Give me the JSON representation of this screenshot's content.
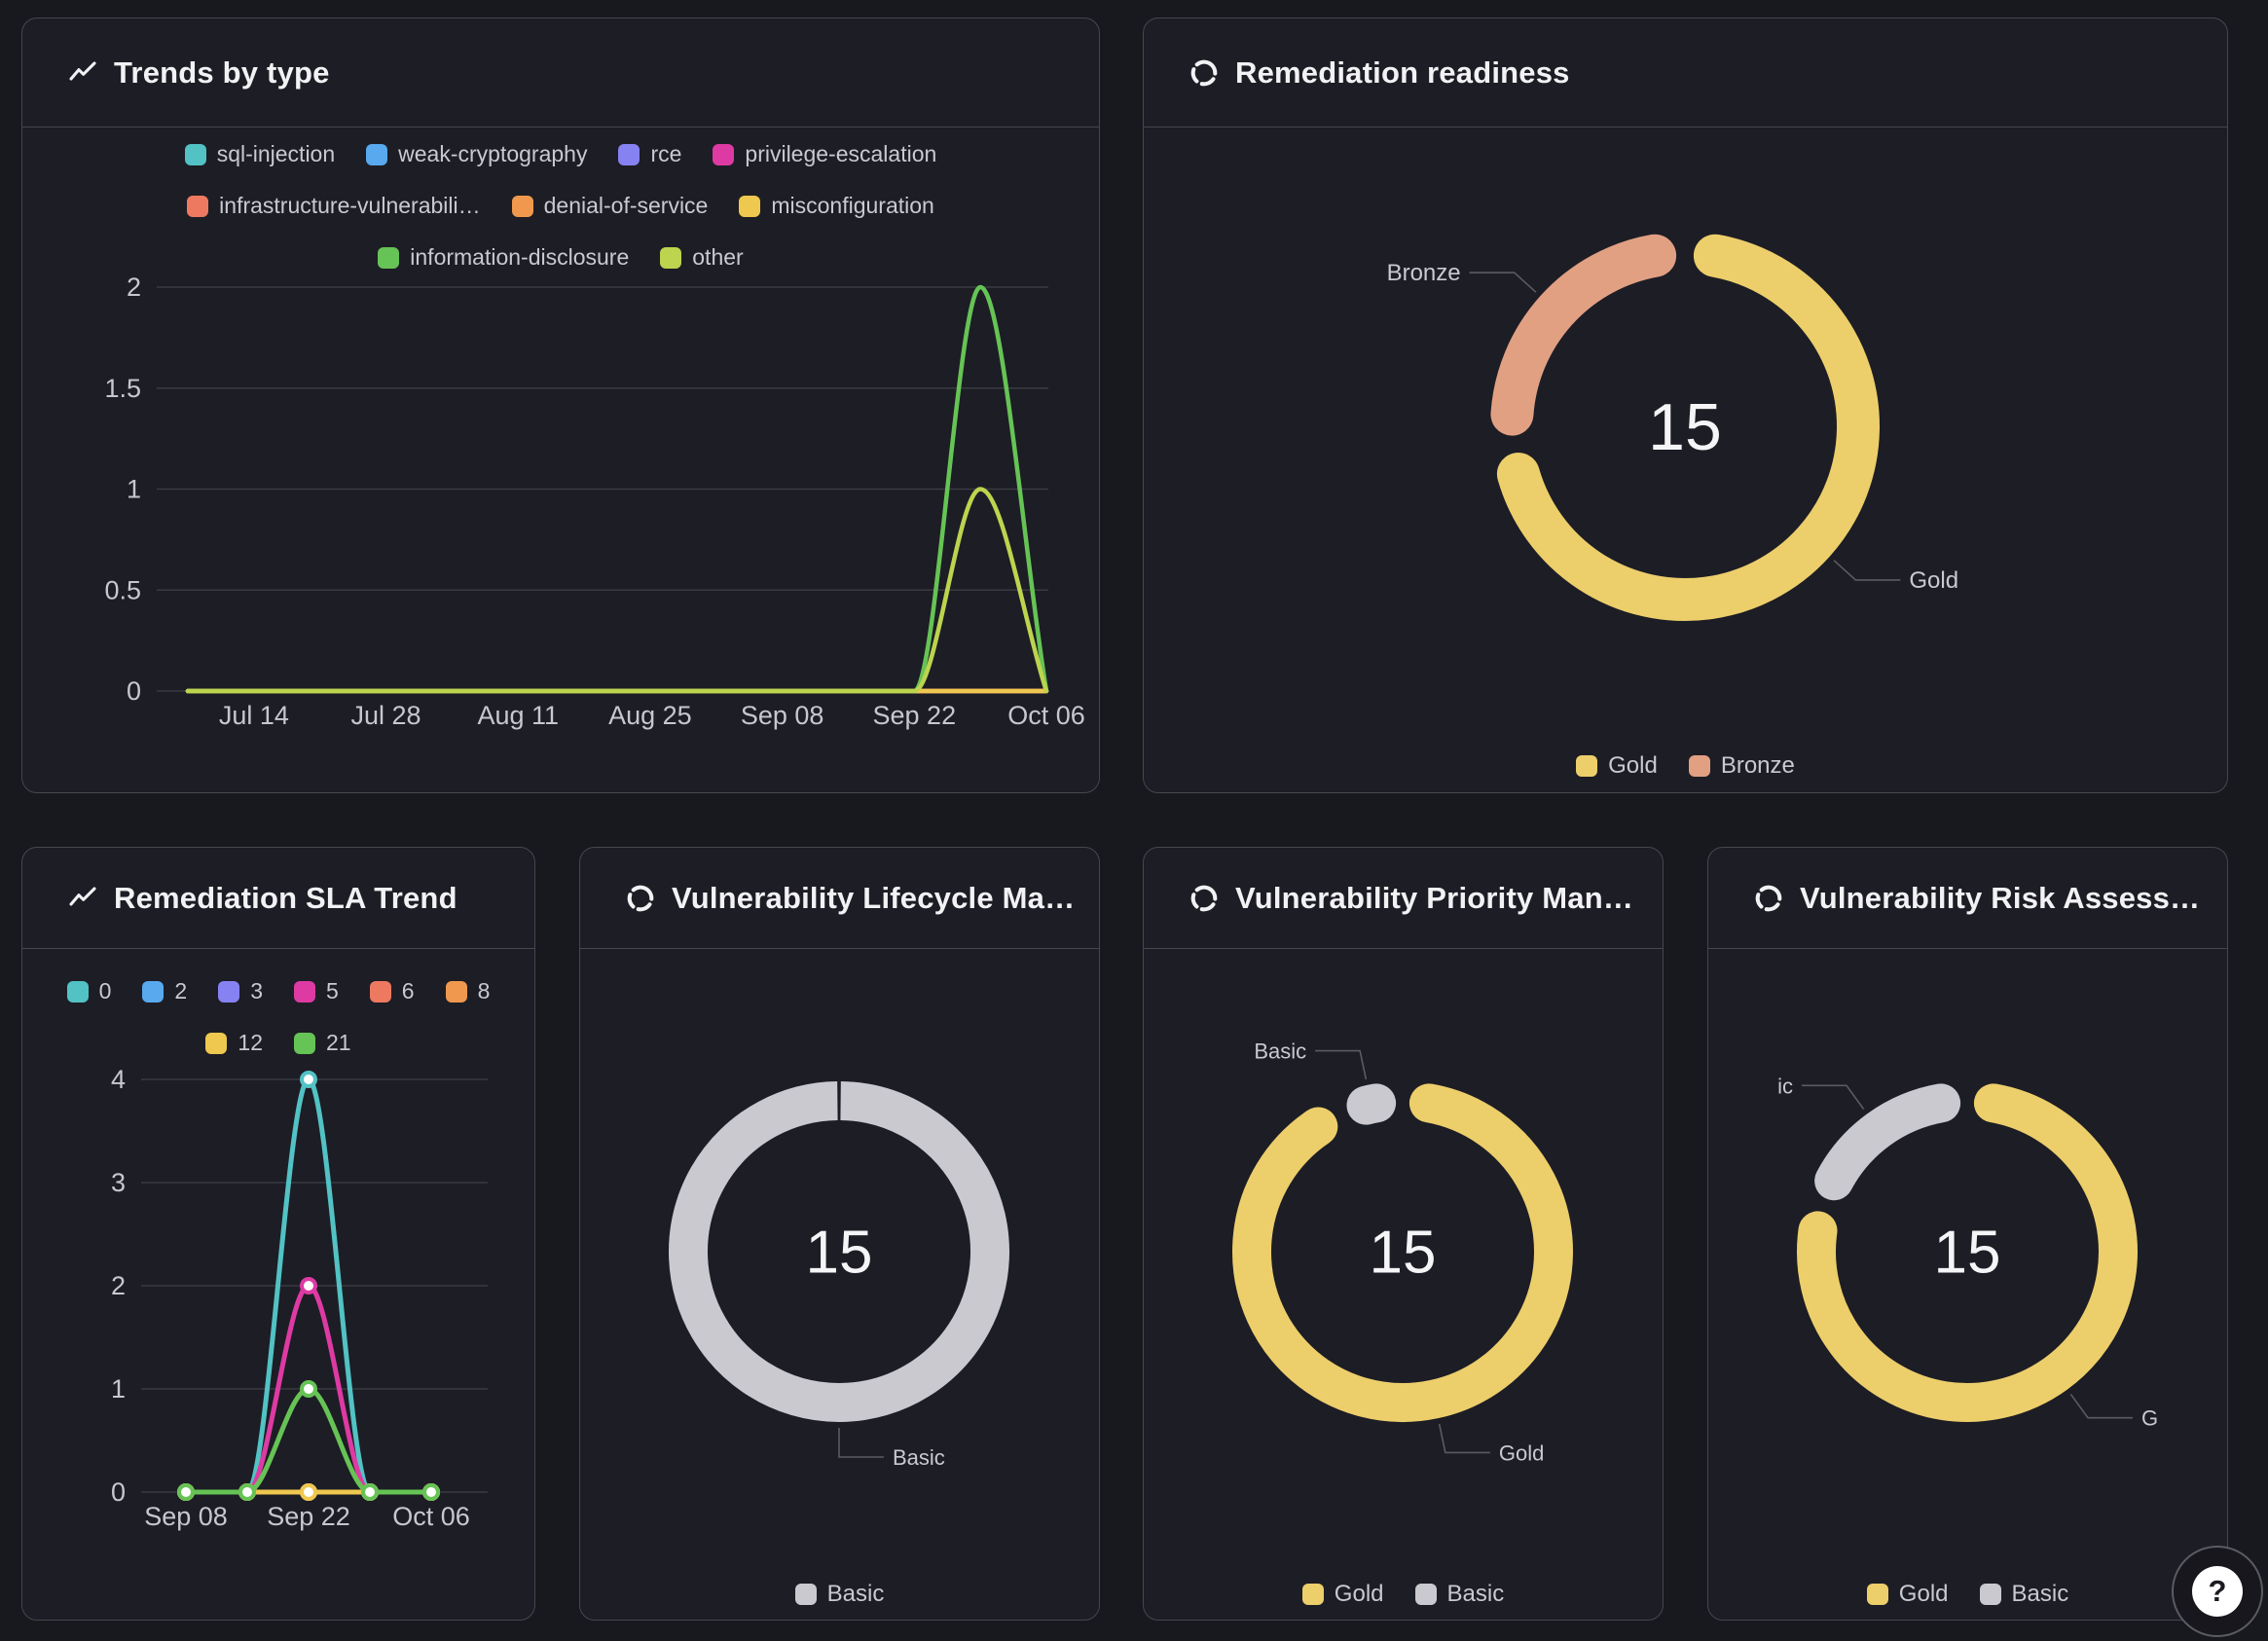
{
  "colors": {
    "gold": "#ecce6b",
    "bronze": "#e2a083",
    "basic_gray": "#c9c9cf",
    "teal": "#52c2c4",
    "blue": "#58a9ee",
    "purple": "#8782f2",
    "magenta": "#de3aa3",
    "salmon": "#ee7961",
    "orange": "#f0994e",
    "yellow": "#eec84f",
    "green": "#66c355",
    "lime": "#bcd44e",
    "panel_bg": "#1d1d25",
    "page_bg": "#18181f",
    "grid_line": "#3a3a41",
    "tick_text": "#c7c7cd"
  },
  "help_button": {
    "icon": "question-mark-icon",
    "label": "?"
  },
  "panels": {
    "trends": {
      "title": "Trends by type",
      "icon": "line-chart-icon",
      "chart_data": {
        "type": "line",
        "smooth": true,
        "show_points": false,
        "grid": true,
        "legend_position": "top",
        "x": [
          "Jul 07",
          "Jul 14",
          "Jul 21",
          "Jul 28",
          "Aug 04",
          "Aug 11",
          "Aug 18",
          "Aug 25",
          "Sep 01",
          "Sep 08",
          "Sep 15",
          "Sep 22",
          "Sep 29",
          "Oct 06"
        ],
        "x_tick_labels": [
          "Jul 14",
          "Jul 28",
          "Aug 11",
          "Aug 25",
          "Sep 08",
          "Sep 22",
          "Oct 06"
        ],
        "x_tick_indices": [
          1,
          3,
          5,
          7,
          9,
          11,
          13
        ],
        "y_ticks": [
          "0",
          "0.5",
          "1",
          "1.5",
          "2"
        ],
        "ylim": [
          0,
          2
        ],
        "series": [
          {
            "name": "sql-injection",
            "color": "#52c2c4",
            "values": [
              0,
              0,
              0,
              0,
              0,
              0,
              0,
              0,
              0,
              0,
              0,
              0,
              0,
              0
            ]
          },
          {
            "name": "weak-cryptography",
            "color": "#58a9ee",
            "values": [
              0,
              0,
              0,
              0,
              0,
              0,
              0,
              0,
              0,
              0,
              0,
              0,
              0,
              0
            ]
          },
          {
            "name": "rce",
            "color": "#8782f2",
            "values": [
              0,
              0,
              0,
              0,
              0,
              0,
              0,
              0,
              0,
              0,
              0,
              0,
              0,
              0
            ]
          },
          {
            "name": "privilege-escalation",
            "color": "#de3aa3",
            "values": [
              0,
              0,
              0,
              0,
              0,
              0,
              0,
              0,
              0,
              0,
              0,
              0,
              0,
              0
            ]
          },
          {
            "name": "infrastructure-vulnerabili…",
            "color": "#ee7961",
            "values": [
              0,
              0,
              0,
              0,
              0,
              0,
              0,
              0,
              0,
              0,
              0,
              0,
              0,
              0
            ]
          },
          {
            "name": "denial-of-service",
            "color": "#f0994e",
            "values": [
              0,
              0,
              0,
              0,
              0,
              0,
              0,
              0,
              0,
              0,
              0,
              0,
              0,
              0
            ]
          },
          {
            "name": "misconfiguration",
            "color": "#eec84f",
            "values": [
              0,
              0,
              0,
              0,
              0,
              0,
              0,
              0,
              0,
              0,
              0,
              0,
              0,
              0
            ]
          },
          {
            "name": "information-disclosure",
            "color": "#66c355",
            "values": [
              0,
              0,
              0,
              0,
              0,
              0,
              0,
              0,
              0,
              0,
              0,
              0,
              2,
              0
            ]
          },
          {
            "name": "other",
            "color": "#bcd44e",
            "values": [
              0,
              0,
              0,
              0,
              0,
              0,
              0,
              0,
              0,
              0,
              0,
              0,
              1,
              0
            ]
          }
        ]
      }
    },
    "readiness": {
      "title": "Remediation readiness",
      "icon": "donut-chart-icon",
      "chart_data": {
        "type": "pie",
        "center_value": "15",
        "slices": [
          {
            "name": "Gold",
            "value": 11,
            "color": "#ecce6b",
            "callout_label": "Gold"
          },
          {
            "name": "Bronze",
            "value": 4,
            "color": "#e2a083",
            "callout_label": "Bronze"
          }
        ],
        "legend": [
          "Gold",
          "Bronze"
        ]
      }
    },
    "sla": {
      "title": "Remediation SLA Trend",
      "icon": "line-chart-icon",
      "chart_data": {
        "type": "line",
        "smooth": true,
        "show_points": true,
        "grid": true,
        "legend_position": "top",
        "x": [
          "Sep 08",
          "Sep 15",
          "Sep 22",
          "Sep 29",
          "Oct 06"
        ],
        "x_tick_labels": [
          "Sep 08",
          "Sep 22",
          "Oct 06"
        ],
        "x_tick_indices": [
          0,
          2,
          4
        ],
        "y_ticks": [
          "0",
          "1",
          "2",
          "3",
          "4"
        ],
        "ylim": [
          0,
          4
        ],
        "series": [
          {
            "name": "0",
            "color": "#52c2c4",
            "values": [
              0,
              0,
              4,
              0,
              0
            ]
          },
          {
            "name": "2",
            "color": "#58a9ee",
            "values": [
              0,
              0,
              0,
              0,
              0
            ]
          },
          {
            "name": "3",
            "color": "#8782f2",
            "values": [
              0,
              0,
              0,
              0,
              0
            ]
          },
          {
            "name": "5",
            "color": "#de3aa3",
            "values": [
              0,
              0,
              2,
              0,
              0
            ]
          },
          {
            "name": "6",
            "color": "#ee7961",
            "values": [
              0,
              0,
              0,
              0,
              0
            ]
          },
          {
            "name": "8",
            "color": "#f0994e",
            "values": [
              0,
              0,
              0,
              0,
              0
            ]
          },
          {
            "name": "12",
            "color": "#eec84f",
            "values": [
              0,
              0,
              0,
              0,
              0
            ]
          },
          {
            "name": "21",
            "color": "#66c355",
            "values": [
              0,
              0,
              1,
              0,
              0
            ]
          }
        ]
      }
    },
    "lifecycle": {
      "title": "Vulnerability Lifecycle Ma…",
      "icon": "donut-chart-icon",
      "chart_data": {
        "type": "pie",
        "center_value": "15",
        "slices": [
          {
            "name": "Basic",
            "value": 15,
            "color": "#c9c9cf",
            "callout_label": "Basic"
          }
        ],
        "legend": [
          "Basic"
        ]
      }
    },
    "priority": {
      "title": "Vulnerability Priority Man…",
      "icon": "donut-chart-icon",
      "chart_data": {
        "type": "pie",
        "center_value": "15",
        "slices": [
          {
            "name": "Gold",
            "value": 14,
            "color": "#ecce6b",
            "callout_label": "Gold"
          },
          {
            "name": "Basic",
            "value": 1,
            "color": "#c9c9cf",
            "callout_label": "Basic"
          }
        ],
        "legend": [
          "Gold",
          "Basic"
        ]
      }
    },
    "risk": {
      "title": "Vulnerability Risk Assess…",
      "icon": "donut-chart-icon",
      "chart_data": {
        "type": "pie",
        "center_value": "15",
        "slices": [
          {
            "name": "Gold",
            "value": 12,
            "color": "#ecce6b",
            "callout_label": "G"
          },
          {
            "name": "Basic",
            "value": 3,
            "color": "#c9c9cf",
            "callout_label": "ic"
          }
        ],
        "legend": [
          "Gold",
          "Basic"
        ]
      }
    }
  }
}
